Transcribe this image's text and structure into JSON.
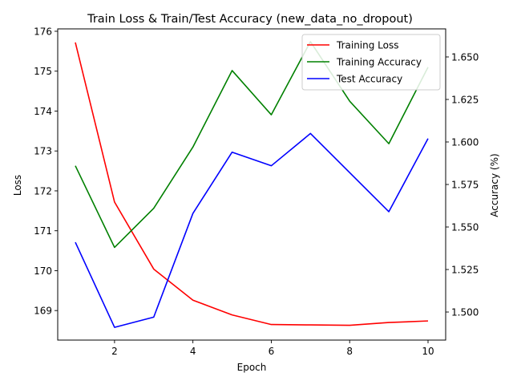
{
  "chart_data": {
    "type": "line",
    "title": "Train Loss & Train/Test Accuracy (new_data_no_dropout)",
    "xlabel": "Epoch",
    "ylabel_left": "Loss",
    "ylabel_right": "Accuracy (%)",
    "xlim": [
      0.55,
      10.45
    ],
    "ylim_left": [
      168.26,
      176.06
    ],
    "ylim_right": [
      1.4835,
      1.6665
    ],
    "x_ticks": [
      2,
      4,
      6,
      8,
      10
    ],
    "y_ticks_left": [
      169,
      170,
      171,
      172,
      173,
      174,
      175,
      176
    ],
    "y_ticks_right": [
      1.5,
      1.525,
      1.55,
      1.575,
      1.6,
      1.625,
      1.65
    ],
    "y_tick_labels_right": [
      "1.500",
      "1.525",
      "1.550",
      "1.575",
      "1.600",
      "1.625",
      "1.650"
    ],
    "grid": false,
    "legend_position": "top-right",
    "x": [
      1,
      2,
      3,
      4,
      5,
      6,
      7,
      8,
      9,
      10
    ],
    "series": [
      {
        "name": "Training Loss",
        "axis": "left",
        "color": "#ff0000",
        "values": [
          175.72,
          171.72,
          170.04,
          169.26,
          168.89,
          168.65,
          168.64,
          168.63,
          168.7,
          168.74
        ]
      },
      {
        "name": "Training Accuracy",
        "axis": "right",
        "color": "#008000",
        "values": [
          1.586,
          1.538,
          1.561,
          1.597,
          1.642,
          1.616,
          1.659,
          1.624,
          1.599,
          1.644
        ]
      },
      {
        "name": "Test Accuracy",
        "axis": "right",
        "color": "#0000ff",
        "values": [
          1.541,
          1.491,
          1.497,
          1.558,
          1.594,
          1.586,
          1.605,
          1.582,
          1.559,
          1.602
        ]
      }
    ]
  }
}
